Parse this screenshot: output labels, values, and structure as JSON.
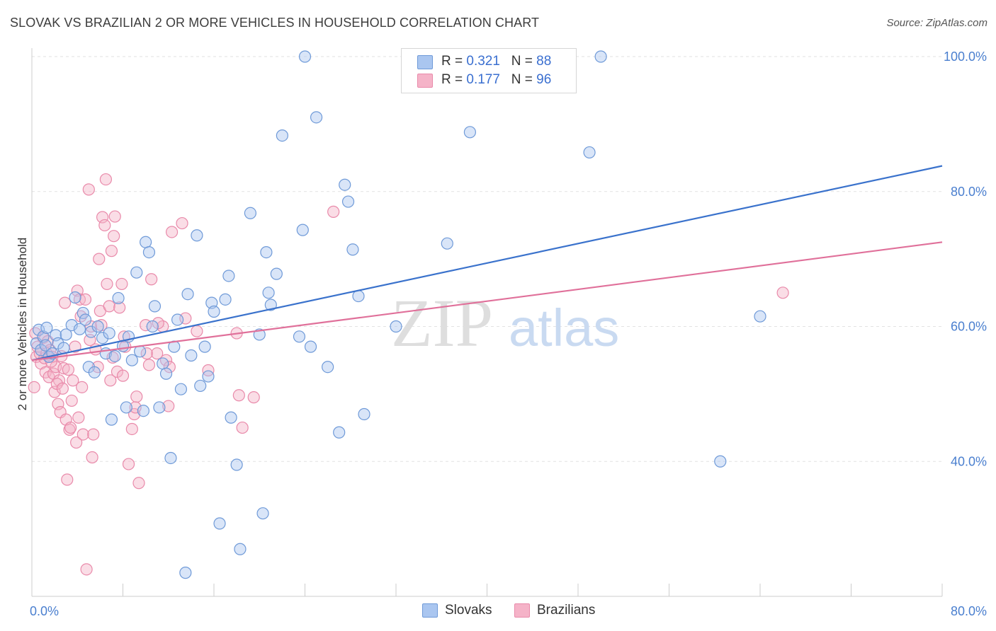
{
  "title": "SLOVAK VS BRAZILIAN 2 OR MORE VEHICLES IN HOUSEHOLD CORRELATION CHART",
  "source": "Source: ZipAtlas.com",
  "watermark": {
    "zip": "ZIP",
    "atlas": "atlas"
  },
  "legend": {
    "slovaks": {
      "r_label": "R = ",
      "r_value": "0.321",
      "n_label": "N = ",
      "n_value": "88"
    },
    "brazilians": {
      "r_label": "R = ",
      "r_value": "0.177",
      "n_label": "N = ",
      "n_value": "96"
    }
  },
  "bottom_legend": {
    "slovaks": "Slovaks",
    "brazilians": "Brazilians"
  },
  "colors": {
    "slovak_fill": "#aac6f0",
    "slovak_stroke": "#6f9ad8",
    "slovak_line": "#3a72cc",
    "brazilian_fill": "#f5b3c8",
    "brazilian_stroke": "#e98aaa",
    "brazilian_line": "#e0709a",
    "tick_text": "#4a7fcf",
    "grid": "#e2e2e2"
  },
  "chart_data": {
    "type": "scatter",
    "title": "SLOVAK VS BRAZILIAN 2 OR MORE VEHICLES IN HOUSEHOLD CORRELATION CHART",
    "xlabel": "",
    "ylabel": "2 or more Vehicles in Household",
    "xlim": [
      0,
      80
    ],
    "ylim": [
      20,
      100
    ],
    "x_tick_labels": [
      {
        "value": 0,
        "label": "0.0%"
      },
      {
        "value": 80,
        "label": "80.0%"
      }
    ],
    "y_tick_labels": [
      {
        "value": 40,
        "label": "40.0%"
      },
      {
        "value": 60,
        "label": "60.0%"
      },
      {
        "value": 80,
        "label": "80.0%"
      },
      {
        "value": 100,
        "label": "100.0%"
      }
    ],
    "grid": true,
    "legend_position": "top-center",
    "series": [
      {
        "name": "Slovaks",
        "trend": [
          [
            0,
            55.0
          ],
          [
            80,
            83.8
          ]
        ],
        "points": [
          [
            0.4,
            57.5
          ],
          [
            0.6,
            59.5
          ],
          [
            0.8,
            56.5
          ],
          [
            1.0,
            58.5
          ],
          [
            1.2,
            57.2
          ],
          [
            1.3,
            59.8
          ],
          [
            1.5,
            55.5
          ],
          [
            1.8,
            56.0
          ],
          [
            2.1,
            58.7
          ],
          [
            2.3,
            57.5
          ],
          [
            2.8,
            56.8
          ],
          [
            3.0,
            58.8
          ],
          [
            3.5,
            60.2
          ],
          [
            3.8,
            64.3
          ],
          [
            4.2,
            59.6
          ],
          [
            4.5,
            62.0
          ],
          [
            4.7,
            61.0
          ],
          [
            5.0,
            54.0
          ],
          [
            5.2,
            59.2
          ],
          [
            5.5,
            53.2
          ],
          [
            5.8,
            60.0
          ],
          [
            6.2,
            58.3
          ],
          [
            6.5,
            56.0
          ],
          [
            6.8,
            59.0
          ],
          [
            7.0,
            46.2
          ],
          [
            7.3,
            55.6
          ],
          [
            7.6,
            64.2
          ],
          [
            8.0,
            57.1
          ],
          [
            8.3,
            48.0
          ],
          [
            8.5,
            58.5
          ],
          [
            8.8,
            55.0
          ],
          [
            9.2,
            68.0
          ],
          [
            9.5,
            56.3
          ],
          [
            9.8,
            47.5
          ],
          [
            10.0,
            72.5
          ],
          [
            10.3,
            71.0
          ],
          [
            10.6,
            60.0
          ],
          [
            10.8,
            63.0
          ],
          [
            11.2,
            48.0
          ],
          [
            11.5,
            54.5
          ],
          [
            11.8,
            53.0
          ],
          [
            12.2,
            40.5
          ],
          [
            12.5,
            57.0
          ],
          [
            12.8,
            61.0
          ],
          [
            13.1,
            50.7
          ],
          [
            13.5,
            23.5
          ],
          [
            13.7,
            64.8
          ],
          [
            14.0,
            55.7
          ],
          [
            14.5,
            73.5
          ],
          [
            14.8,
            51.2
          ],
          [
            15.2,
            57.0
          ],
          [
            15.5,
            52.6
          ],
          [
            15.8,
            63.5
          ],
          [
            16.0,
            62.2
          ],
          [
            16.5,
            30.8
          ],
          [
            17.0,
            64.0
          ],
          [
            17.3,
            67.5
          ],
          [
            17.5,
            46.5
          ],
          [
            18.0,
            39.5
          ],
          [
            18.3,
            27.0
          ],
          [
            19.2,
            76.8
          ],
          [
            20.0,
            58.8
          ],
          [
            20.3,
            32.3
          ],
          [
            20.6,
            71.0
          ],
          [
            20.8,
            65.0
          ],
          [
            21.0,
            63.2
          ],
          [
            21.5,
            67.8
          ],
          [
            22.0,
            88.3
          ],
          [
            23.5,
            58.5
          ],
          [
            23.8,
            74.3
          ],
          [
            24.0,
            100.0
          ],
          [
            24.5,
            57.0
          ],
          [
            25.0,
            91.0
          ],
          [
            26.0,
            54.0
          ],
          [
            27.0,
            44.3
          ],
          [
            27.5,
            81.0
          ],
          [
            27.8,
            78.5
          ],
          [
            28.2,
            71.4
          ],
          [
            28.7,
            64.5
          ],
          [
            29.2,
            47.0
          ],
          [
            32.0,
            60.0
          ],
          [
            36.5,
            72.3
          ],
          [
            37.8,
            100.0
          ],
          [
            38.5,
            88.8
          ],
          [
            49.0,
            85.8
          ],
          [
            50.0,
            100.0
          ],
          [
            60.5,
            40.0
          ],
          [
            64.0,
            61.5
          ]
        ]
      },
      {
        "name": "Brazilians",
        "trend": [
          [
            0,
            55.0
          ],
          [
            80,
            72.5
          ]
        ],
        "points": [
          [
            0.2,
            51.0
          ],
          [
            0.4,
            55.5
          ],
          [
            0.5,
            57.0
          ],
          [
            0.7,
            56.0
          ],
          [
            0.8,
            54.5
          ],
          [
            1.0,
            58.3
          ],
          [
            1.1,
            55.3
          ],
          [
            1.2,
            53.2
          ],
          [
            1.4,
            57.8
          ],
          [
            1.5,
            52.5
          ],
          [
            1.6,
            56.5
          ],
          [
            1.8,
            55.5
          ],
          [
            1.9,
            53.0
          ],
          [
            2.0,
            50.3
          ],
          [
            2.1,
            54.0
          ],
          [
            2.3,
            48.5
          ],
          [
            2.4,
            52.0
          ],
          [
            2.5,
            47.3
          ],
          [
            2.6,
            55.6
          ],
          [
            2.8,
            53.8
          ],
          [
            2.9,
            63.5
          ],
          [
            3.0,
            46.2
          ],
          [
            3.1,
            37.3
          ],
          [
            3.3,
            44.7
          ],
          [
            3.5,
            49.0
          ],
          [
            3.6,
            52.0
          ],
          [
            3.8,
            57.0
          ],
          [
            3.9,
            42.8
          ],
          [
            4.0,
            65.3
          ],
          [
            4.2,
            64.0
          ],
          [
            4.3,
            61.5
          ],
          [
            4.5,
            44.0
          ],
          [
            4.7,
            64.0
          ],
          [
            4.8,
            24.0
          ],
          [
            5.0,
            80.3
          ],
          [
            5.2,
            60.0
          ],
          [
            5.3,
            40.6
          ],
          [
            5.4,
            44.0
          ],
          [
            5.6,
            56.6
          ],
          [
            5.8,
            54.0
          ],
          [
            5.9,
            70.0
          ],
          [
            6.0,
            62.3
          ],
          [
            6.2,
            76.2
          ],
          [
            6.4,
            75.0
          ],
          [
            6.5,
            81.8
          ],
          [
            6.6,
            66.3
          ],
          [
            6.8,
            63.0
          ],
          [
            6.9,
            52.0
          ],
          [
            7.0,
            71.2
          ],
          [
            7.2,
            73.4
          ],
          [
            7.3,
            76.3
          ],
          [
            7.5,
            53.3
          ],
          [
            7.7,
            62.8
          ],
          [
            7.9,
            66.3
          ],
          [
            8.0,
            52.7
          ],
          [
            8.2,
            57.0
          ],
          [
            8.5,
            39.6
          ],
          [
            8.8,
            44.8
          ],
          [
            9.0,
            47.0
          ],
          [
            9.2,
            49.6
          ],
          [
            9.4,
            36.8
          ],
          [
            10.0,
            60.2
          ],
          [
            10.3,
            54.3
          ],
          [
            10.5,
            67.0
          ],
          [
            11.0,
            56.0
          ],
          [
            11.5,
            60.0
          ],
          [
            11.8,
            55.0
          ],
          [
            12.0,
            48.2
          ],
          [
            12.3,
            74.0
          ],
          [
            13.2,
            75.3
          ],
          [
            13.5,
            61.2
          ],
          [
            14.5,
            59.3
          ],
          [
            15.5,
            53.5
          ],
          [
            18.0,
            59.0
          ],
          [
            18.2,
            49.8
          ],
          [
            18.5,
            45.0
          ],
          [
            19.5,
            49.5
          ],
          [
            26.5,
            77.0
          ],
          [
            66.0,
            65.0
          ],
          [
            0.3,
            59.0
          ],
          [
            1.3,
            56.0
          ],
          [
            2.2,
            51.5
          ],
          [
            3.2,
            53.6
          ],
          [
            4.1,
            46.5
          ],
          [
            5.1,
            58.0
          ],
          [
            6.1,
            60.2
          ],
          [
            7.1,
            55.4
          ],
          [
            8.1,
            58.5
          ],
          [
            9.1,
            48.0
          ],
          [
            10.1,
            56.0
          ],
          [
            11.1,
            60.5
          ],
          [
            12.1,
            54.0
          ],
          [
            1.7,
            54.8
          ],
          [
            2.7,
            50.8
          ],
          [
            3.4,
            45.0
          ],
          [
            4.4,
            51.0
          ]
        ]
      }
    ]
  }
}
